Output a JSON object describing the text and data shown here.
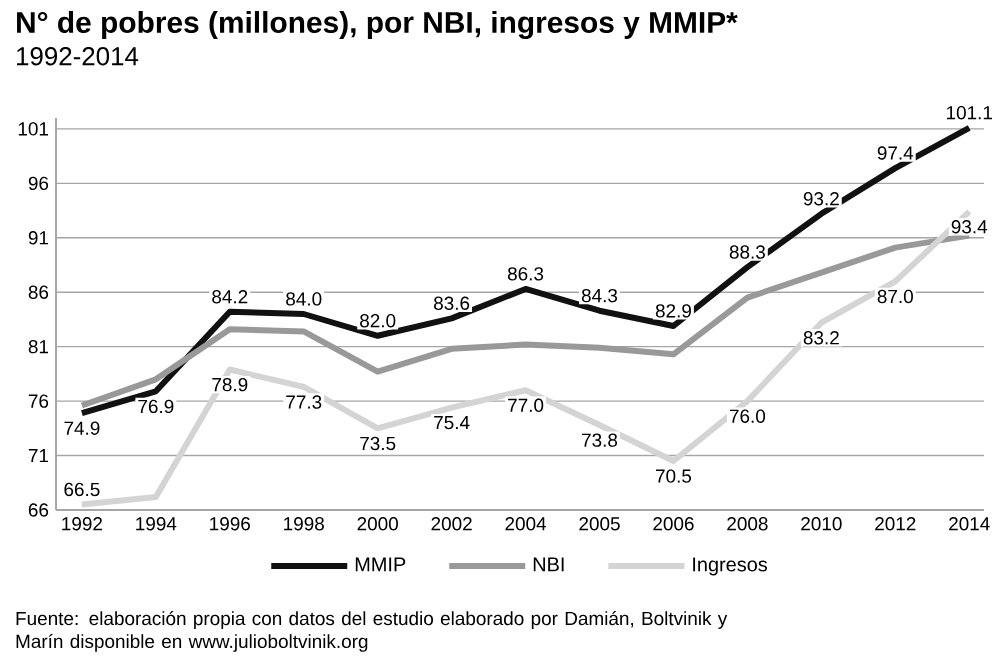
{
  "chart_data": {
    "type": "line",
    "title": "N° de pobres (millones), por NBI, ingresos  y MMIP*",
    "subtitle": "1992-2014",
    "categories": [
      "1992",
      "1994",
      "1996",
      "1998",
      "2000",
      "2002",
      "2004",
      "2005",
      "2006",
      "2008",
      "2010",
      "2012",
      "2014"
    ],
    "series": [
      {
        "name": "MMIP",
        "color": "#111111",
        "values": [
          74.9,
          76.9,
          84.2,
          84.0,
          82.0,
          83.6,
          86.3,
          84.3,
          82.9,
          88.3,
          93.2,
          97.4,
          101.1
        ],
        "value_labels": [
          "74.9",
          "76.9",
          "84.2",
          "84.0",
          "82.0",
          "83.6",
          "86.3",
          "84.3",
          "82.9",
          "88.3",
          "93.2",
          "97.4",
          "101.1"
        ]
      },
      {
        "name": "NBI",
        "color": "#999999",
        "values": [
          75.6,
          78.0,
          82.6,
          82.4,
          78.7,
          80.8,
          81.2,
          80.9,
          80.3,
          85.5,
          87.8,
          90.1,
          91.2
        ]
      },
      {
        "name": "Ingresos",
        "color": "#d4d4d4",
        "values": [
          66.5,
          67.2,
          78.9,
          77.3,
          73.5,
          75.4,
          77.0,
          73.8,
          70.5,
          76.0,
          83.2,
          87.0,
          93.4
        ],
        "value_labels": [
          "66.5",
          null,
          "78.9",
          "77.3",
          "73.5",
          "75.4",
          "77.0",
          "73.8",
          "70.5",
          "76.0",
          "83.2",
          "87.0",
          "93.4"
        ]
      }
    ],
    "ylim": [
      66,
      102
    ],
    "yticks": [
      66,
      71,
      76,
      81,
      86,
      91,
      96,
      101
    ],
    "grid": "y",
    "legend": "bottom",
    "marker": "none",
    "line_style": "solid",
    "annotations": [
      "Fuente: elaboración propia con datos del estudio elaborado por Damián, Boltvinik y Marín disponible en www.julioboltvinik.org"
    ]
  }
}
